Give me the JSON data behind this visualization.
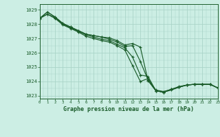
{
  "title": "Graphe pression niveau de la mer (hPa)",
  "background_color": "#cceee4",
  "grid_color": "#aad4c8",
  "line_color": "#1a5c2a",
  "xlim": [
    0,
    23
  ],
  "ylim": [
    1022.8,
    1029.4
  ],
  "yticks": [
    1023,
    1024,
    1025,
    1026,
    1027,
    1028,
    1029
  ],
  "xticks": [
    0,
    1,
    2,
    3,
    4,
    5,
    6,
    7,
    8,
    9,
    10,
    11,
    12,
    13,
    14,
    15,
    16,
    17,
    18,
    19,
    20,
    21,
    22,
    23
  ],
  "series": [
    [
      1028.4,
      1028.85,
      1028.5,
      1028.05,
      1027.8,
      1027.55,
      1027.3,
      1027.2,
      1027.1,
      1027.05,
      1026.85,
      1026.55,
      1026.65,
      1026.4,
      1024.05,
      1023.35,
      1023.25,
      1023.45,
      1023.65,
      1023.75,
      1023.8,
      1023.8,
      1023.8,
      1023.55
    ],
    [
      1028.4,
      1028.85,
      1028.5,
      1028.05,
      1027.8,
      1027.55,
      1027.3,
      1027.2,
      1027.1,
      1026.95,
      1026.75,
      1026.45,
      1026.5,
      1025.4,
      1024.1,
      1023.35,
      1023.25,
      1023.45,
      1023.6,
      1023.75,
      1023.8,
      1023.8,
      1023.8,
      1023.55
    ],
    [
      1028.4,
      1028.7,
      1028.45,
      1028.0,
      1027.75,
      1027.5,
      1027.25,
      1027.1,
      1026.95,
      1026.85,
      1026.6,
      1026.35,
      1025.7,
      1024.45,
      1024.35,
      1023.35,
      1023.25,
      1023.4,
      1023.6,
      1023.75,
      1023.8,
      1023.8,
      1023.8,
      1023.55
    ],
    [
      1028.4,
      1028.7,
      1028.4,
      1027.95,
      1027.7,
      1027.45,
      1027.15,
      1027.0,
      1026.85,
      1026.75,
      1026.5,
      1026.2,
      1025.1,
      1024.0,
      1024.2,
      1023.4,
      1023.3,
      1023.45,
      1023.6,
      1023.75,
      1023.8,
      1023.8,
      1023.8,
      1023.55
    ]
  ]
}
